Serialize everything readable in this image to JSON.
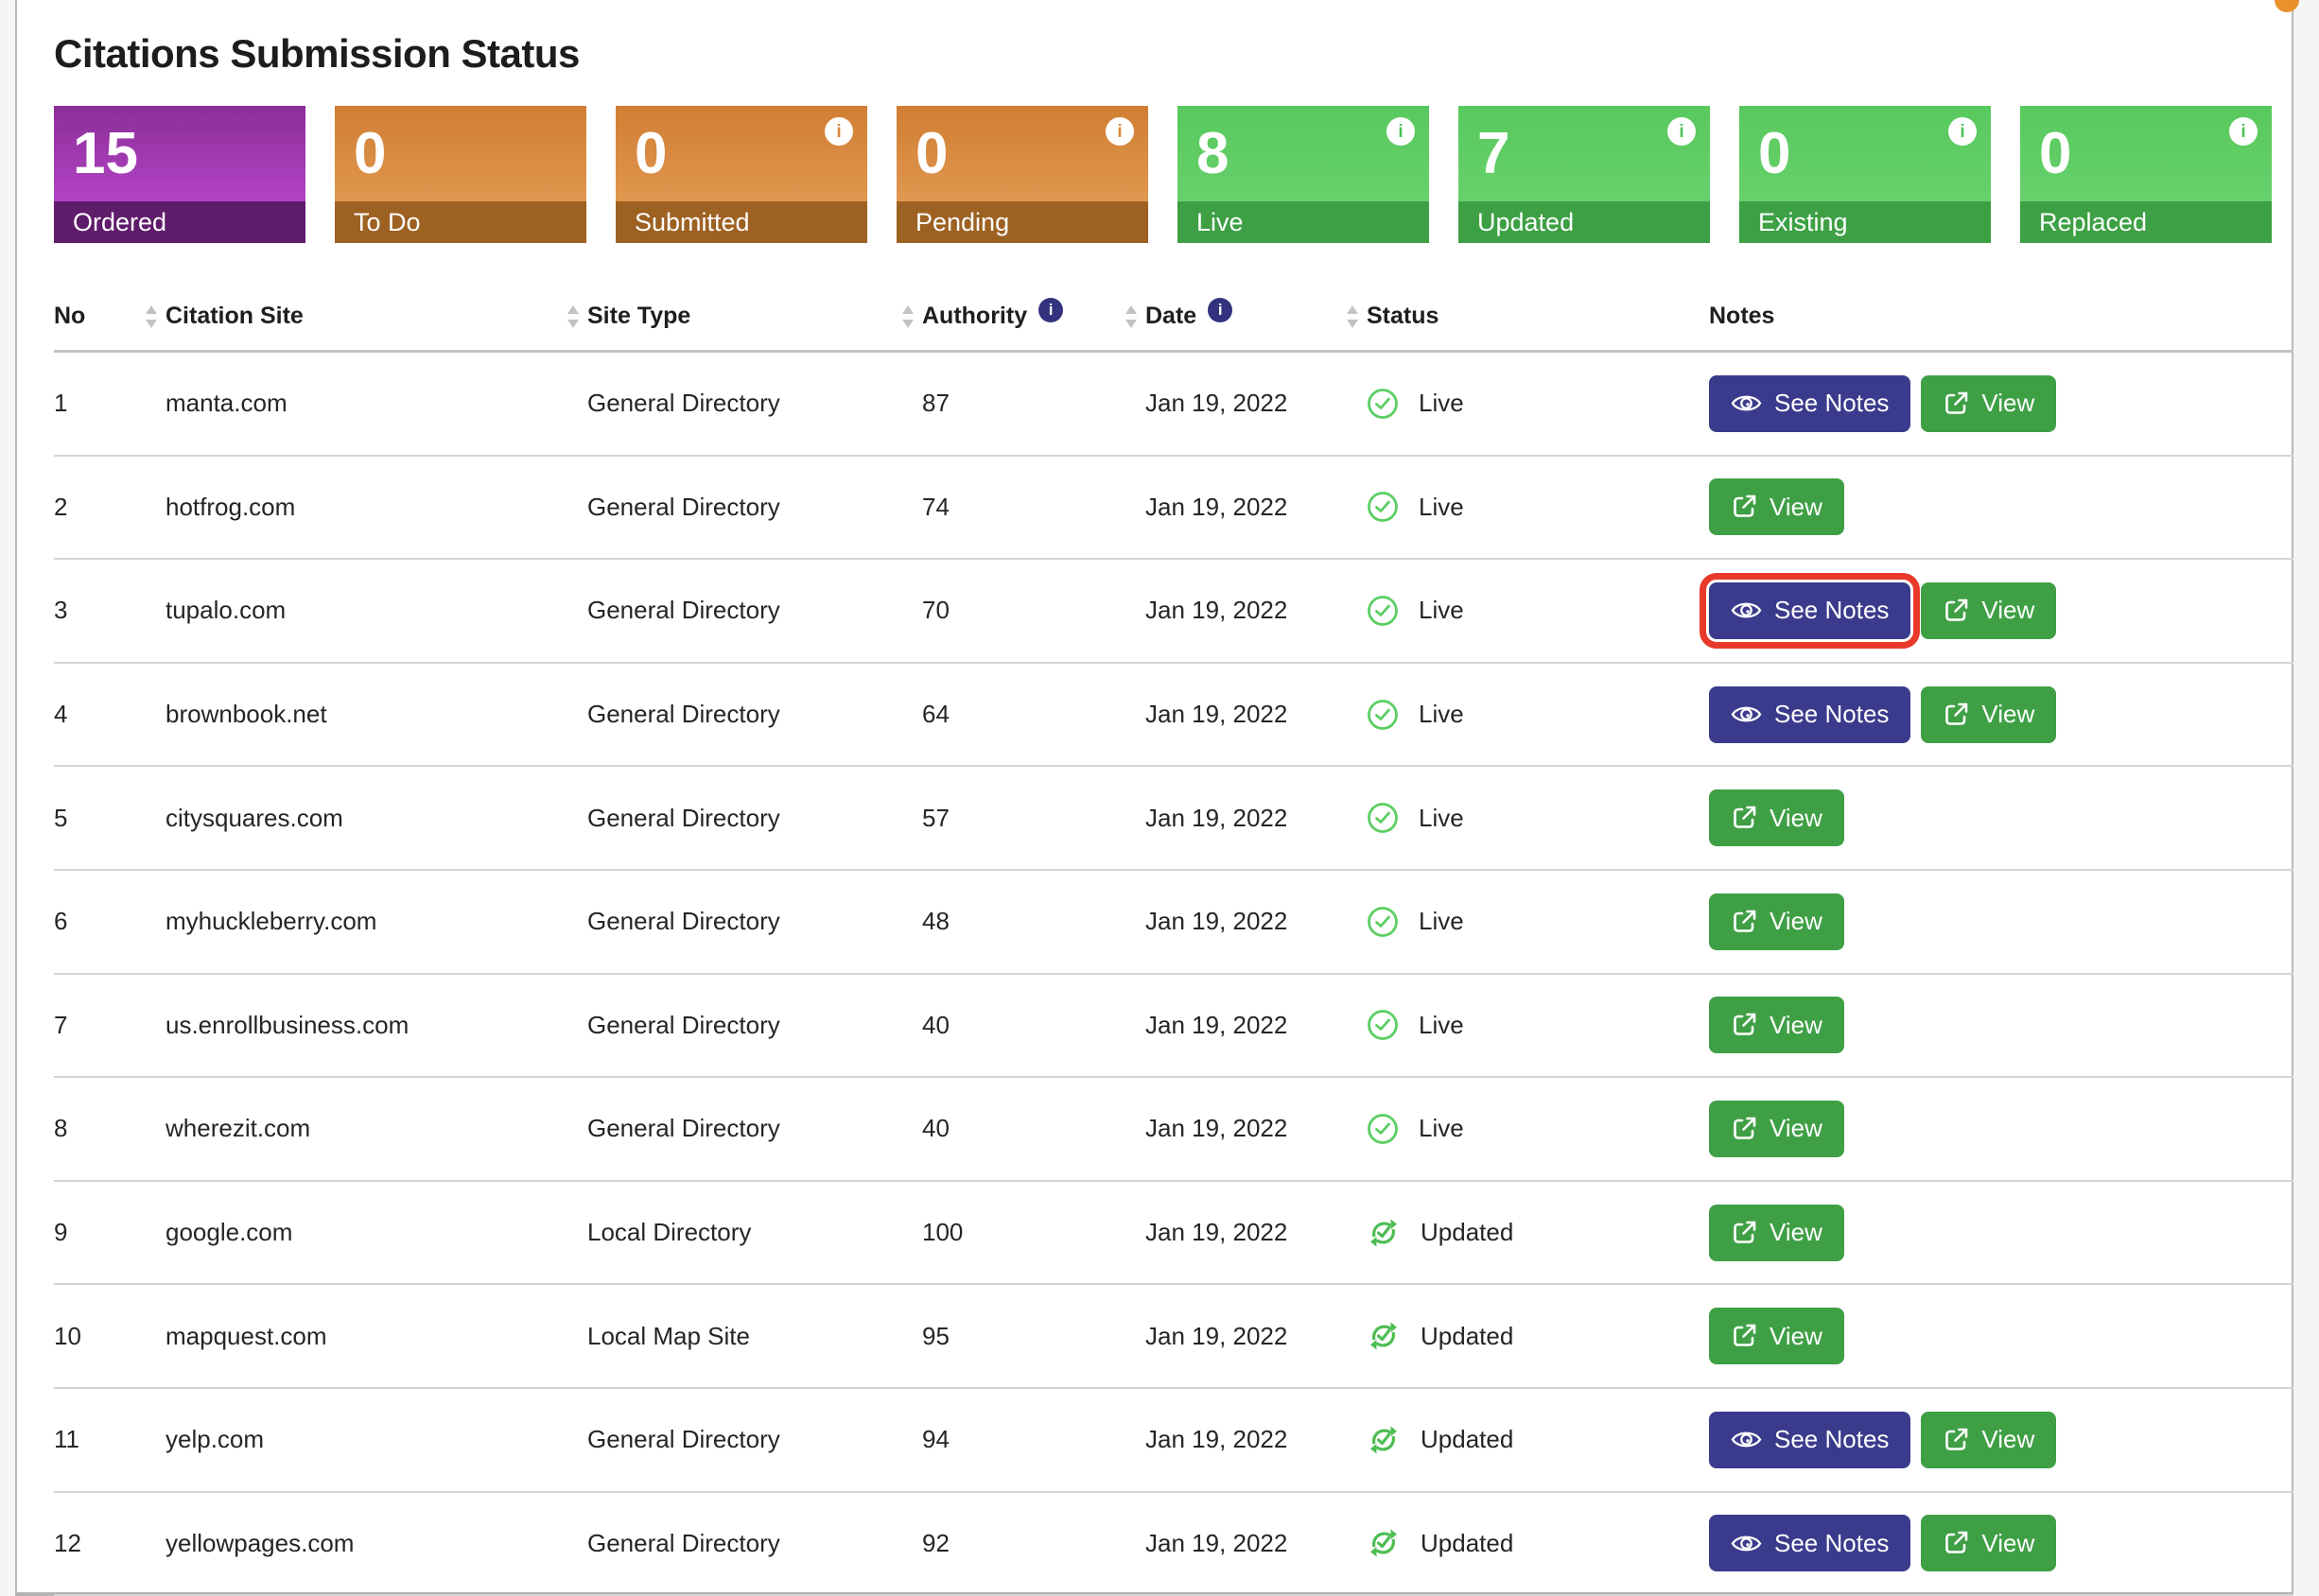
{
  "page": {
    "title": "Citations Submission Status"
  },
  "summary_cards": [
    {
      "value": "15",
      "label": "Ordered",
      "theme": "purple",
      "has_info": false
    },
    {
      "value": "0",
      "label": "To Do",
      "theme": "orange",
      "has_info": false
    },
    {
      "value": "0",
      "label": "Submitted",
      "theme": "orange",
      "has_info": true
    },
    {
      "value": "0",
      "label": "Pending",
      "theme": "orange",
      "has_info": true
    },
    {
      "value": "8",
      "label": "Live",
      "theme": "green",
      "has_info": true
    },
    {
      "value": "7",
      "label": "Updated",
      "theme": "green",
      "has_info": true
    },
    {
      "value": "0",
      "label": "Existing",
      "theme": "green",
      "has_info": true
    },
    {
      "value": "0",
      "label": "Replaced",
      "theme": "green",
      "has_info": true
    }
  ],
  "table": {
    "columns": [
      {
        "label": "No",
        "sortable": false,
        "has_info": false
      },
      {
        "label": "Citation Site",
        "sortable": true,
        "has_info": false
      },
      {
        "label": "Site Type",
        "sortable": true,
        "has_info": false
      },
      {
        "label": "Authority",
        "sortable": true,
        "has_info": true
      },
      {
        "label": "Date",
        "sortable": true,
        "has_info": true
      },
      {
        "label": "Status",
        "sortable": true,
        "has_info": false
      },
      {
        "label": "Notes",
        "sortable": false,
        "has_info": false
      }
    ],
    "buttons": {
      "see_notes": "See Notes",
      "view": "View"
    },
    "rows": [
      {
        "no": "1",
        "site": "manta.com",
        "type": "General Directory",
        "authority": "87",
        "date": "Jan 19, 2022",
        "status": "Live",
        "status_icon": "check-circle",
        "see_notes": true,
        "view": true,
        "highlight_see_notes": false
      },
      {
        "no": "2",
        "site": "hotfrog.com",
        "type": "General Directory",
        "authority": "74",
        "date": "Jan 19, 2022",
        "status": "Live",
        "status_icon": "check-circle",
        "see_notes": false,
        "view": true,
        "highlight_see_notes": false
      },
      {
        "no": "3",
        "site": "tupalo.com",
        "type": "General Directory",
        "authority": "70",
        "date": "Jan 19, 2022",
        "status": "Live",
        "status_icon": "check-circle",
        "see_notes": true,
        "view": true,
        "highlight_see_notes": true
      },
      {
        "no": "4",
        "site": "brownbook.net",
        "type": "General Directory",
        "authority": "64",
        "date": "Jan 19, 2022",
        "status": "Live",
        "status_icon": "check-circle",
        "see_notes": true,
        "view": true,
        "highlight_see_notes": false
      },
      {
        "no": "5",
        "site": "citysquares.com",
        "type": "General Directory",
        "authority": "57",
        "date": "Jan 19, 2022",
        "status": "Live",
        "status_icon": "check-circle",
        "see_notes": false,
        "view": true,
        "highlight_see_notes": false
      },
      {
        "no": "6",
        "site": "myhuckleberry.com",
        "type": "General Directory",
        "authority": "48",
        "date": "Jan 19, 2022",
        "status": "Live",
        "status_icon": "check-circle",
        "see_notes": false,
        "view": true,
        "highlight_see_notes": false
      },
      {
        "no": "7",
        "site": "us.enrollbusiness.com",
        "type": "General Directory",
        "authority": "40",
        "date": "Jan 19, 2022",
        "status": "Live",
        "status_icon": "check-circle",
        "see_notes": false,
        "view": true,
        "highlight_see_notes": false
      },
      {
        "no": "8",
        "site": "wherezit.com",
        "type": "General Directory",
        "authority": "40",
        "date": "Jan 19, 2022",
        "status": "Live",
        "status_icon": "check-circle",
        "see_notes": false,
        "view": true,
        "highlight_see_notes": false
      },
      {
        "no": "9",
        "site": "google.com",
        "type": "Local Directory",
        "authority": "100",
        "date": "Jan 19, 2022",
        "status": "Updated",
        "status_icon": "sync-check",
        "see_notes": false,
        "view": true,
        "highlight_see_notes": false
      },
      {
        "no": "10",
        "site": "mapquest.com",
        "type": "Local Map Site",
        "authority": "95",
        "date": "Jan 19, 2022",
        "status": "Updated",
        "status_icon": "sync-check",
        "see_notes": false,
        "view": true,
        "highlight_see_notes": false
      },
      {
        "no": "11",
        "site": "yelp.com",
        "type": "General Directory",
        "authority": "94",
        "date": "Jan 19, 2022",
        "status": "Updated",
        "status_icon": "sync-check",
        "see_notes": true,
        "view": true,
        "highlight_see_notes": false
      },
      {
        "no": "12",
        "site": "yellowpages.com",
        "type": "General Directory",
        "authority": "92",
        "date": "Jan 19, 2022",
        "status": "Updated",
        "status_icon": "sync-check",
        "see_notes": true,
        "view": true,
        "highlight_see_notes": false
      }
    ]
  },
  "colors": {
    "card_purple": "#8c2d98",
    "card_purple_bar": "#5e1c6b",
    "card_orange": "#d07e33",
    "card_orange_bar": "#9d6122",
    "card_green": "#58c95d",
    "card_green_bar": "#3da044",
    "see_notes_button": "#3b3b8d",
    "view_button": "#3f9f45",
    "status_live_green": "#5bce63",
    "status_updated_green": "#4dbd51",
    "info_badge_navy": "#32327e",
    "highlight_red": "#e8392b"
  }
}
